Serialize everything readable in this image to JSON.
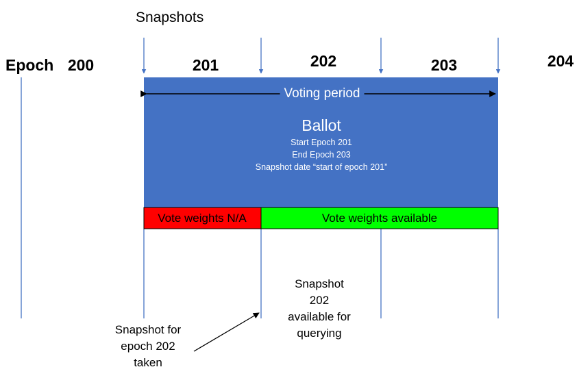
{
  "header": {
    "snapshots_label": "Snapshots",
    "epoch_label": "Epoch"
  },
  "epochs": [
    "200",
    "201",
    "202",
    "203",
    "204"
  ],
  "ballot": {
    "voting_period": "Voting period",
    "title": "Ballot",
    "start": "Start Epoch 201",
    "end": "End Epoch  203",
    "snapshot_date": "Snapshot date “start of epoch 201”"
  },
  "vote_weights": {
    "na_label": "Vote weights N/A",
    "available_label": "Vote weights available"
  },
  "annotations": {
    "snapshot_taken": "Snapshot for\nepoch 202\ntaken",
    "snapshot_available": "Snapshot\n202\navailable for\nquerying"
  },
  "colors": {
    "ballot_box": "#4472c4",
    "na_bar": "#ff0000",
    "available_bar": "#00ff00",
    "timeline": "#4472c4"
  }
}
